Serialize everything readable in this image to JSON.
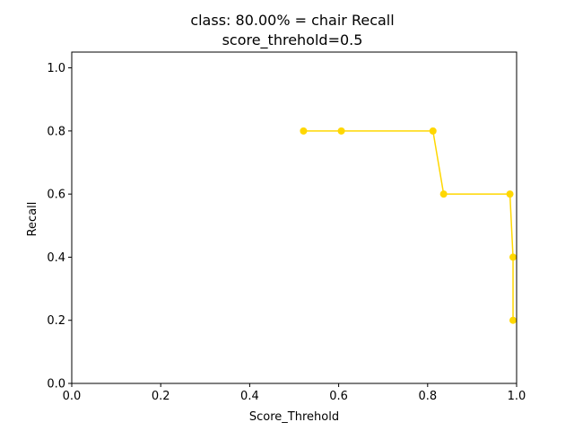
{
  "chart_data": {
    "type": "line",
    "title_line1": "class: 80.00% = chair Recall",
    "title_line2": "score_threhold=0.5",
    "xlabel": "Score_Threhold",
    "ylabel": "Recall",
    "xlim": [
      0.0,
      1.0
    ],
    "ylim": [
      0.0,
      1.05
    ],
    "xticks": [
      "0.0",
      "0.2",
      "0.4",
      "0.6",
      "0.8",
      "1.0"
    ],
    "yticks": [
      "0.0",
      "0.2",
      "0.4",
      "0.6",
      "0.8",
      "1.0"
    ],
    "grid": false,
    "series": [
      {
        "color": "#FFD700",
        "marker": "circle",
        "x": [
          0.521,
          0.606,
          0.812,
          0.836,
          0.985,
          0.992,
          0.992
        ],
        "y": [
          0.8,
          0.8,
          0.8,
          0.6,
          0.6,
          0.4,
          0.2
        ]
      }
    ]
  }
}
